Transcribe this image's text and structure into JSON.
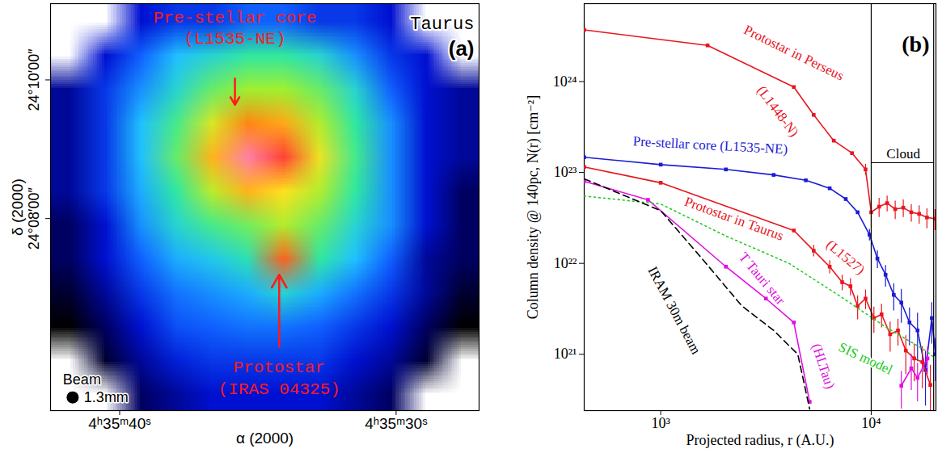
{
  "chart_data": [
    {
      "type": "image",
      "title": "(a)",
      "subtitle": "Taurus",
      "x_label": "α (2000)",
      "y_label": "δ (2000)",
      "xlim": [
        42.5,
        27.0
      ],
      "xticks": [
        {
          "value": 40,
          "label": "4ʰ35ᵐ40ˢ"
        },
        {
          "value": 30,
          "label": "4ʰ35ᵐ30ˢ"
        }
      ],
      "ylim": [
        5.23,
        11.1
      ],
      "yticks": [
        {
          "value": 8,
          "label": "24°08′00″"
        },
        {
          "value": 10,
          "label": "24°10′00″"
        }
      ],
      "color_range": [
        0,
        100
      ],
      "cells": [
        [
          null,
          null,
          20,
          25,
          25,
          30,
          30,
          25,
          25,
          20,
          null,
          null
        ],
        [
          null,
          20,
          30,
          40,
          45,
          50,
          50,
          45,
          35,
          25,
          20,
          null
        ],
        [
          15,
          25,
          35,
          45,
          55,
          60,
          60,
          55,
          45,
          30,
          20,
          15
        ],
        [
          15,
          25,
          40,
          52,
          66,
          78,
          75,
          62,
          50,
          35,
          20,
          15
        ],
        [
          15,
          25,
          40,
          55,
          74,
          95,
          86,
          68,
          52,
          35,
          20,
          15
        ],
        [
          15,
          25,
          38,
          50,
          63,
          74,
          70,
          62,
          50,
          35,
          20,
          10
        ],
        [
          10,
          20,
          35,
          45,
          52,
          56,
          62,
          55,
          45,
          35,
          20,
          10
        ],
        [
          10,
          20,
          30,
          38,
          42,
          48,
          82,
          50,
          40,
          30,
          15,
          10
        ],
        [
          5,
          15,
          25,
          32,
          35,
          38,
          45,
          38,
          32,
          25,
          15,
          5
        ],
        [
          0,
          10,
          20,
          28,
          30,
          32,
          32,
          30,
          25,
          20,
          10,
          0
        ],
        [
          null,
          5,
          15,
          22,
          25,
          25,
          25,
          25,
          20,
          15,
          5,
          null
        ],
        [
          null,
          null,
          10,
          15,
          20,
          20,
          20,
          20,
          15,
          10,
          null,
          null
        ]
      ],
      "annotations": [
        {
          "text": "Pre-stellar core",
          "x": 35.83,
          "y": 10.91,
          "color": "#ff1a1a"
        },
        {
          "text": "(L1535-NE)",
          "x": 35.83,
          "y": 10.6,
          "color": "#ff1a1a"
        },
        {
          "text": "Protostar",
          "x": 34.23,
          "y": 5.86,
          "color": "#ff1a1a"
        },
        {
          "text": "(IRAS 04325)",
          "x": 34.23,
          "y": 5.55,
          "color": "#ff1a1a"
        }
      ],
      "arrows": [
        {
          "x": 35.83,
          "y1": 10.02,
          "y2": 9.64,
          "color": "#ff1a1a"
        },
        {
          "x": 34.23,
          "y1": 6.15,
          "y2": 7.19,
          "color": "#ff1a1a"
        }
      ],
      "beam": {
        "label": "Beam",
        "text": "1.3mm",
        "x": 41.7,
        "y": 5.42
      }
    },
    {
      "type": "line",
      "title": "(b)",
      "log": true,
      "x_label": "Projected radius, r (A.U.)",
      "y_label": "Column density @ 140pc, N(r) [cm⁻²]",
      "xlim": [
        433,
        20300
      ],
      "xticks": [
        {
          "value": 1000,
          "label": "10³"
        },
        {
          "value": 10000,
          "label": "10⁴"
        }
      ],
      "ylim": [
        2.4e+20,
        7.2e+24
      ],
      "yticks": [
        {
          "value": 1e+21,
          "label": "10²¹"
        },
        {
          "value": 1e+22,
          "label": "10²²"
        },
        {
          "value": 1e+23,
          "label": "10²³"
        },
        {
          "value": 1e+24,
          "label": "10²⁴"
        }
      ],
      "series": [
        {
          "color": "#e8161e",
          "marker": "square",
          "line_style": "solid",
          "x": [
            433,
            1670,
            4290,
            5330,
            6640,
            8110,
            9400,
            10000,
            10900,
            11900,
            13000,
            14200,
            15500,
            16900,
            18400,
            20100
          ],
          "values": [
            3.7e+24,
            2.5e+24,
            8.7e+23,
            4.3e+23,
            2.24e+23,
            1.63e+23,
            1.08e+23,
            3.65e+22,
            4.2e+22,
            4.6e+22,
            3.95e+22,
            4.1e+22,
            3.65e+22,
            3.5e+22,
            3.2e+22,
            3.1e+22
          ],
          "errors": [
            null,
            null,
            null,
            null,
            null,
            null,
            1.5e+22,
            1.2e+22,
            1e+22,
            9e+21,
            9e+21,
            9e+21,
            8e+21,
            8e+21,
            8e+21,
            8e+21
          ],
          "labels": [
            {
              "text": "Protostar in Perseus",
              "x": 4290,
              "y": 2.07e+24
            },
            {
              "text": "(L1448-N)",
              "x": 3600,
              "y": 4.7e+23
            }
          ]
        },
        {
          "color": "#1c1cd6",
          "marker": "square",
          "line_style": "solid",
          "x": [
            433,
            1000,
            2040,
            3440,
            4890,
            6350,
            7570,
            8620,
            9810,
            10700,
            11700,
            12800,
            13900,
            15200,
            16600,
            18100,
            19400,
            20200
          ],
          "values": [
            1.47e+23,
            1.22e+23,
            1.08e+23,
            9.4e+22,
            8.2e+22,
            6.7e+22,
            5.1e+22,
            3.65e+22,
            2.07e+22,
            1.13e+22,
            7.5e+21,
            4.5e+21,
            3.7e+21,
            2.24e+21,
            1.83e+21,
            6.7e+20,
            2.5e+21,
            1e+21
          ],
          "errors": [
            null,
            null,
            null,
            null,
            null,
            null,
            null,
            null,
            3e+21,
            2.5e+21,
            2e+21,
            1.5e+21,
            1.5e+21,
            1e+21,
            1e+21,
            4e+20,
            1.2e+21,
            5e+20
          ],
          "labels": [
            {
              "text": "Pre-stellar core (L1535-NE)",
              "x": 1720,
              "y": 1.99e+23
            }
          ]
        },
        {
          "color": "#e8161e",
          "marker": "square",
          "line_style": "solid",
          "x": [
            433,
            1000,
            4290,
            5330,
            6350,
            7280,
            7970,
            8620,
            9400,
            10300,
            11200,
            12300,
            13400,
            14600,
            16000,
            17500,
            19100
          ],
          "values": [
            1.15e+23,
            7.7e+22,
            2.3e+22,
            1.38e+22,
            9.2e+21,
            6.2e+21,
            5.6e+21,
            3.4e+21,
            4.1e+21,
            2.5e+21,
            2.75e+21,
            1.66e+21,
            1.83e+21,
            1.1e+21,
            9e+20,
            8.2e+20,
            4.6e+20
          ],
          "errors": [
            null,
            null,
            null,
            2e+21,
            1.5e+21,
            1.2e+21,
            1.2e+21,
            1e+21,
            1e+21,
            8e+20,
            8e+20,
            6e+20,
            6e+20,
            5e+20,
            4e+20,
            4e+20,
            3e+20
          ],
          "labels": [
            {
              "text": "Protostar in Taurus",
              "x": 2230,
              "y": 3.1e+22
            },
            {
              "text": "(L1527)",
              "x": 7550,
              "y": 1.17e+22
            }
          ]
        },
        {
          "color": "#e010e0",
          "marker": "square",
          "line_style": "solid",
          "x": [
            433,
            870,
            2040,
            3160,
            4290,
            5100,
            9000,
            13900,
            15500,
            16600,
            18500
          ],
          "values": [
            8e+22,
            5e+22,
            9.2e+21,
            4.1e+21,
            2.24e+21,
            3e+20,
            null,
            4.5e+20,
            7e+20,
            5.5e+20,
            9e+20
          ],
          "errors": [
            null,
            null,
            null,
            null,
            null,
            null,
            null,
            2e+20,
            3e+20,
            2.5e+20,
            3e+20
          ],
          "labels": [
            {
              "text": "T Tauri star",
              "x": 3030,
              "y": 6.8e+21
            },
            {
              "text": "(HLTau)",
              "x": 5920,
              "y": 7.4e+20
            }
          ]
        },
        {
          "color": "#22cc22",
          "marker": "none",
          "line_style": "dotted",
          "x": [
            433,
            1000,
            2040,
            4070,
            6960,
            11700,
            18100,
            20200
          ],
          "values": [
            5.5e+22,
            4.5e+22,
            2e+22,
            1e+22,
            4.5e+21,
            2e+21,
            1.1e+21,
            9e+20
          ],
          "labels": [
            {
              "text": "SIS model",
              "x": 9400,
              "y": 9e+20
            }
          ]
        },
        {
          "color": "#000000",
          "marker": "none",
          "line_style": "dashed",
          "x": [
            433,
            1000,
            1570,
            2430,
            3440,
            4480,
            5100
          ],
          "values": [
            8.5e+22,
            3.8e+22,
            1.13e+22,
            3.4e+21,
            1.83e+21,
            1e+21,
            2.5e+20
          ],
          "labels": [
            {
              "text": "IRAM 30m beam",
              "x": 1160,
              "y": 3.04e+21
            }
          ]
        }
      ],
      "annotations": [
        {
          "text": "Cloud",
          "x": 14200,
          "y": 1.6e+23,
          "color": "#000000",
          "bracket": [
            10000,
            19800,
            1.28e+23
          ]
        }
      ]
    }
  ]
}
